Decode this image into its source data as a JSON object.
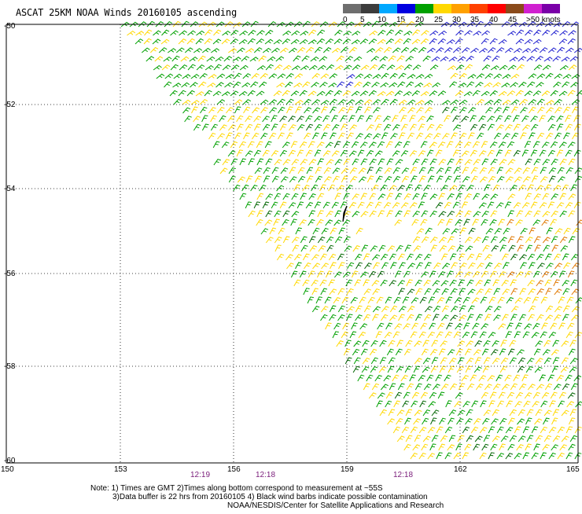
{
  "title": "ASCAT 25KM NOAA Winds 20160105 ascending",
  "scale": {
    "labels": [
      "0",
      "5",
      "10",
      "15",
      "20",
      "25",
      "30",
      "35",
      "40",
      "45",
      ">50 knots"
    ],
    "colors": [
      "#6e6e6e",
      "#3a3a3a",
      "#00a8ff",
      "#0000e0",
      "#00a000",
      "#ffd800",
      "#ffa000",
      "#ff4000",
      "#ff0000",
      "#8a4a1a",
      "#d020d0",
      "#7a00a8"
    ]
  },
  "lat_labels": [
    "-50",
    "-52",
    "-54",
    "-56",
    "-58",
    "-60"
  ],
  "lon_labels": [
    "150",
    "153",
    "156",
    "159",
    "162",
    "165"
  ],
  "times": [
    "12:19",
    "12:18",
    "12:18"
  ],
  "notes": [
    "Note: 1) Times are GMT 2)Times along bottom correspond to measurement at ~55S",
    "3)Data buffer is 22 hrs from 20160105 4) Black wind barbs indicate possible contamination",
    "NOAA/NESDIS/Center for Satellite Applications and Research"
  ]
}
